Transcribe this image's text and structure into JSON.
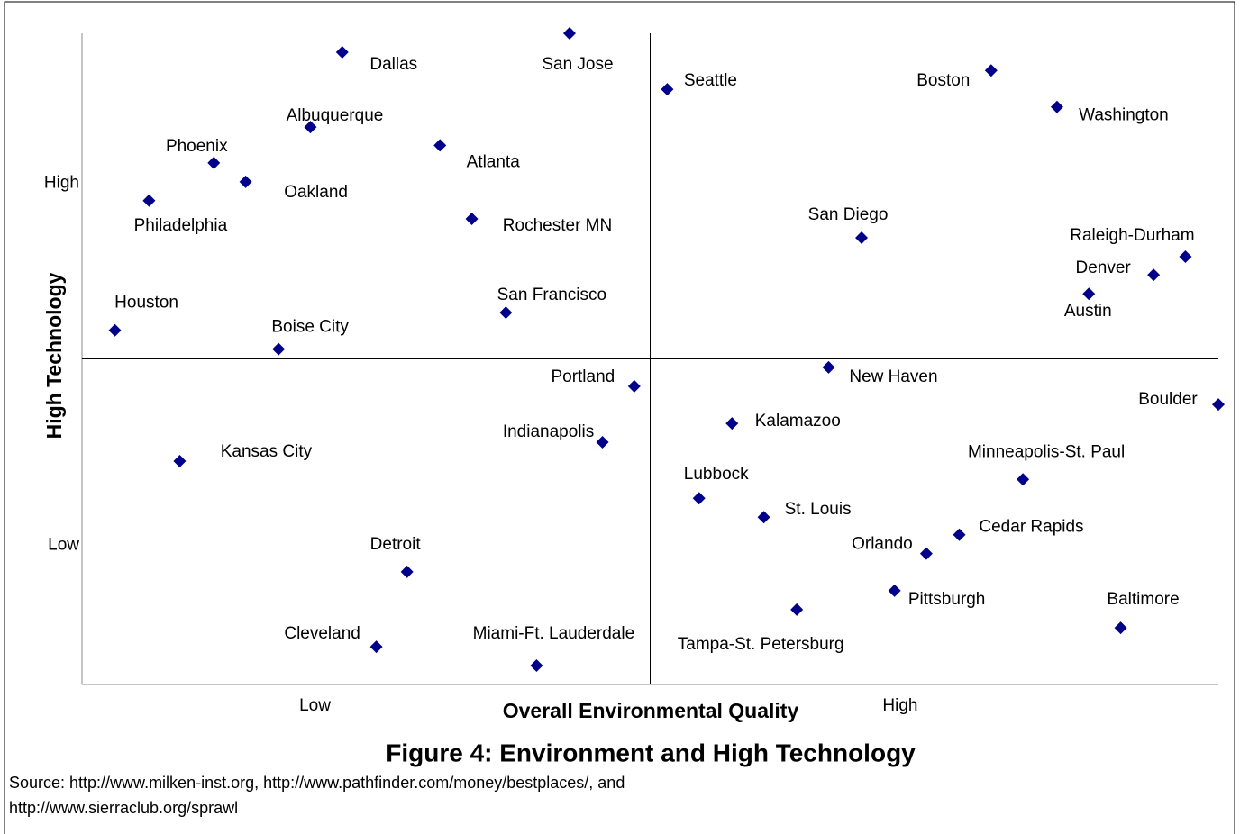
{
  "chart_data": {
    "type": "scatter",
    "title": "Figure 4: Environment and High Technology",
    "x_label": "Overall Environmental Quality",
    "y_label": "High Technology",
    "source": [
      "Source: http://www.milken-inst.org, http://www.pathfinder.com/money/bestplaces/, and",
      "http://www.sierraclub.org/sprawl"
    ],
    "xlim": [
      0,
      100
    ],
    "ylim": [
      0,
      100
    ],
    "x_divider": 50,
    "y_divider": 50,
    "x_axis_labels": [
      {
        "value": 20.5,
        "label": "Low"
      },
      {
        "value": 72,
        "label": "High"
      }
    ],
    "y_axis_labels": [
      {
        "value": 21.4,
        "label": "Low"
      },
      {
        "value": 77,
        "label": "High"
      }
    ],
    "color": "#00008b",
    "labels": [
      "Dallas",
      "San Jose",
      "Seattle",
      "Boston",
      "Washington",
      "Albuquerque",
      "Phoenix",
      "Atlanta",
      "Oakland",
      "Philadelphia",
      "Rochester MN",
      "San Diego",
      "Raleigh-Durham",
      "Denver",
      "Austin",
      "Houston",
      "Boise City",
      "San Francisco",
      "Portland",
      "New Haven",
      "Boulder",
      "Kalamazoo",
      "Indianapolis",
      "Kansas City",
      "Minneapolis-St. Paul",
      "Lubbock",
      "St. Louis",
      "Cedar Rapids",
      "Orlando",
      "Detroit",
      "Pittsburgh",
      "Baltimore",
      "Tampa-St. Petersburg",
      "Cleveland",
      "Miami-Ft. Lauderdale"
    ],
    "x": [
      22.9,
      42.9,
      51.5,
      80.0,
      85.8,
      20.1,
      11.6,
      31.5,
      14.4,
      5.9,
      34.3,
      68.6,
      97.1,
      94.3,
      88.6,
      2.9,
      17.3,
      37.3,
      48.6,
      65.7,
      100,
      57.2,
      45.8,
      8.6,
      82.8,
      54.3,
      60.0,
      77.2,
      74.3,
      28.6,
      71.5,
      91.4,
      62.9,
      25.9,
      40.0
    ],
    "y": [
      97.1,
      100,
      91.4,
      94.3,
      88.7,
      85.6,
      80.1,
      82.8,
      77.2,
      74.3,
      71.5,
      68.6,
      65.7,
      62.9,
      60.0,
      54.4,
      51.5,
      57.1,
      45.8,
      48.7,
      43.0,
      40.1,
      37.2,
      34.3,
      31.5,
      28.6,
      25.7,
      23.0,
      20.1,
      17.3,
      14.4,
      8.7,
      11.5,
      5.8,
      2.9
    ]
  }
}
